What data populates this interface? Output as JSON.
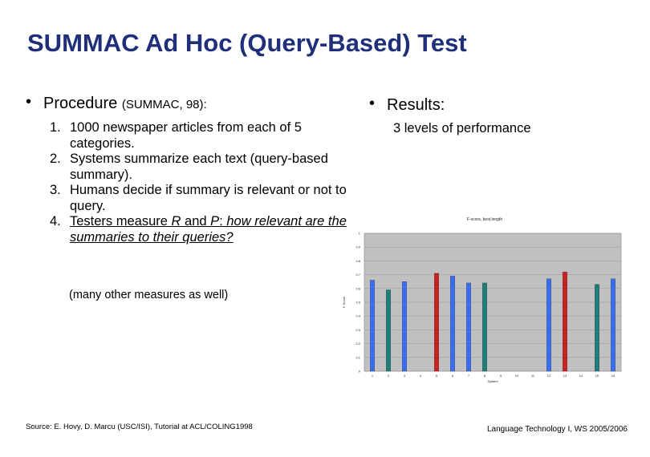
{
  "slide": {
    "title": "SUMMAC Ad Hoc (Query-Based) Test",
    "left_bullet_glyph": "•",
    "left_bullet": "Procedure",
    "left_bullet_small": "(SUMMAC, 98):",
    "steps": [
      {
        "num": "1.",
        "text": "1000 newspaper articles from each of 5 categories."
      },
      {
        "num": "2.",
        "text": "Systems summarize each text (query-based summary)."
      },
      {
        "num": "3.",
        "text": "Humans decide if summary is relevant or not to query."
      },
      {
        "num": "4.",
        "prefix": "Testers measure ",
        "R": "R",
        "and": " and ",
        "P": "P",
        "colon": ":",
        "rest": "  how relevant are the summaries to their queries?"
      }
    ],
    "note": "(many other measures as well)",
    "right_bullet_glyph": "•",
    "right_bullet": "Results:",
    "levels": "3 levels of performance",
    "footer_left": "Source: E. Hovy, D. Marcu (USC/ISI), Tutorial at ACL/COLING1998",
    "footer_right": "Language Technology I, WS 2005/2006"
  },
  "chart_data": {
    "type": "bar",
    "title": "F-score, best length",
    "xlabel": "System",
    "ylabel": "F-Score",
    "ylim": [
      0,
      1
    ],
    "yticks": [
      "0",
      "0.1",
      "0.2",
      "0.3",
      "0.4",
      "0.5",
      "0.6",
      "0.7",
      "0.8",
      "0.9",
      "1"
    ],
    "categories": [
      "1",
      "2",
      "3",
      "4",
      "5",
      "6",
      "7",
      "8",
      "9",
      "10",
      "11",
      "12",
      "13",
      "14",
      "15",
      "16"
    ],
    "values": [
      0.66,
      0.59,
      0.65,
      null,
      0.71,
      0.69,
      0.64,
      0.64,
      null,
      null,
      null,
      0.67,
      0.72,
      null,
      0.63,
      0.67
    ],
    "bar_colors": [
      "#3a6df0",
      "#1c7f7a",
      "#3a6df0",
      null,
      "#cc1f1f",
      "#3a6df0",
      "#3a6df0",
      "#1c7f7a",
      null,
      null,
      null,
      "#3a6df0",
      "#cc1f1f",
      null,
      "#1c7f7a",
      "#3a6df0"
    ],
    "grid": true,
    "background": "#c0c0c0"
  }
}
